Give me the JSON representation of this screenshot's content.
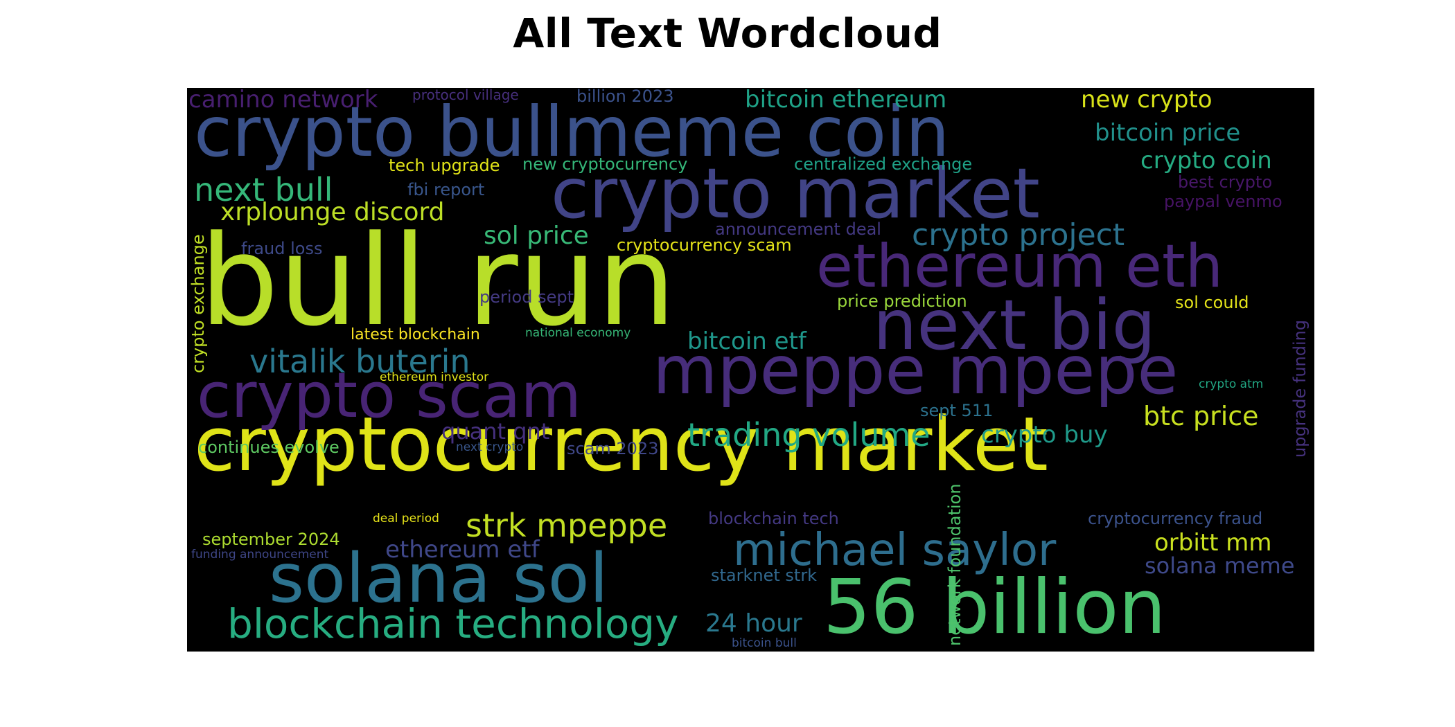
{
  "title": "All Text Wordcloud",
  "words": [
    {
      "text": "cryptocurrency market",
      "color": "#dfe318"
    },
    {
      "text": "bull run",
      "color": "#b8de29"
    },
    {
      "text": "56 billion",
      "color": "#4ac16d"
    },
    {
      "text": "crypto bullmeme coin",
      "color": "#3b528b"
    },
    {
      "text": "crypto market",
      "color": "#414487"
    },
    {
      "text": "ethereum eth",
      "color": "#482878"
    },
    {
      "text": "next big",
      "color": "#46337e"
    },
    {
      "text": "mpeppe mpepe",
      "color": "#472d7b"
    },
    {
      "text": "crypto scam",
      "color": "#482475"
    },
    {
      "text": "solana sol",
      "color": "#2c728e"
    },
    {
      "text": "michael saylor",
      "color": "#2e6e8e"
    },
    {
      "text": "blockchain technology",
      "color": "#27ad81"
    },
    {
      "text": "vitalik buterin",
      "color": "#2a788e"
    },
    {
      "text": "strk mpeppe",
      "color": "#c2df23"
    },
    {
      "text": "trading volume",
      "color": "#22a884"
    },
    {
      "text": "next bull",
      "color": "#35b779"
    },
    {
      "text": "crypto project",
      "color": "#2c728e"
    },
    {
      "text": "xrplounge discord",
      "color": "#bddf26"
    },
    {
      "text": "bitcoin ethereum",
      "color": "#1fa287"
    },
    {
      "text": "new crypto",
      "color": "#d8e219"
    },
    {
      "text": "bitcoin price",
      "color": "#21918c"
    },
    {
      "text": "crypto coin",
      "color": "#25ab82"
    },
    {
      "text": "btc price",
      "color": "#c8e020"
    },
    {
      "text": "crypto buy",
      "color": "#1f9a8a"
    },
    {
      "text": "bitcoin etf",
      "color": "#1f978b"
    },
    {
      "text": "orbitt mm",
      "color": "#cae11f"
    },
    {
      "text": "solana meme",
      "color": "#3e4989"
    },
    {
      "text": "24 hour",
      "color": "#2a788e"
    },
    {
      "text": "sol price",
      "color": "#38b977"
    },
    {
      "text": "quant qnt",
      "color": "#46307e"
    },
    {
      "text": "ethereum etf",
      "color": "#3f4788"
    },
    {
      "text": "camino network",
      "color": "#481f70"
    },
    {
      "text": "tech upgrade",
      "color": "#e2e418"
    },
    {
      "text": "new cryptocurrency",
      "color": "#35b779"
    },
    {
      "text": "centralized exchange",
      "color": "#1fa187"
    },
    {
      "text": "fbi report",
      "color": "#39568c"
    },
    {
      "text": "protocol village",
      "color": "#472f7d"
    },
    {
      "text": "billion 2023",
      "color": "#3b528b"
    },
    {
      "text": "best crypto",
      "color": "#481769"
    },
    {
      "text": "paypal venmo",
      "color": "#471365"
    },
    {
      "text": "announcement deal",
      "color": "#443983"
    },
    {
      "text": "cryptocurrency scam",
      "color": "#e5e419"
    },
    {
      "text": "fraud loss",
      "color": "#3e4a89"
    },
    {
      "text": "period sept",
      "color": "#443a83"
    },
    {
      "text": "price prediction",
      "color": "#9bd93c"
    },
    {
      "text": "sol could",
      "color": "#e5e419"
    },
    {
      "text": "latest blockchain",
      "color": "#fde725"
    },
    {
      "text": "national economy",
      "color": "#37b878"
    },
    {
      "text": "ethereum investor",
      "color": "#e2e418"
    },
    {
      "text": "continues evolve",
      "color": "#5ec962"
    },
    {
      "text": "next crypto",
      "color": "#39568c"
    },
    {
      "text": "scam 2023",
      "color": "#3f4788"
    },
    {
      "text": "sept 511",
      "color": "#2c728e"
    },
    {
      "text": "crypto atm",
      "color": "#22a884"
    },
    {
      "text": "september 2024",
      "color": "#addc30"
    },
    {
      "text": "deal period",
      "color": "#e7e419"
    },
    {
      "text": "blockchain tech",
      "color": "#443983"
    },
    {
      "text": "cryptocurrency fraud",
      "color": "#3b528b"
    },
    {
      "text": "funding announcement",
      "color": "#3f4788"
    },
    {
      "text": "starknet strk",
      "color": "#31688e"
    },
    {
      "text": "bitcoin bull",
      "color": "#3b528b"
    },
    {
      "text": "crypto exchange",
      "color": "#c0df25"
    },
    {
      "text": "network foundation",
      "color": "#4ec36b"
    },
    {
      "text": "upgrade funding",
      "color": "#46327e"
    }
  ]
}
